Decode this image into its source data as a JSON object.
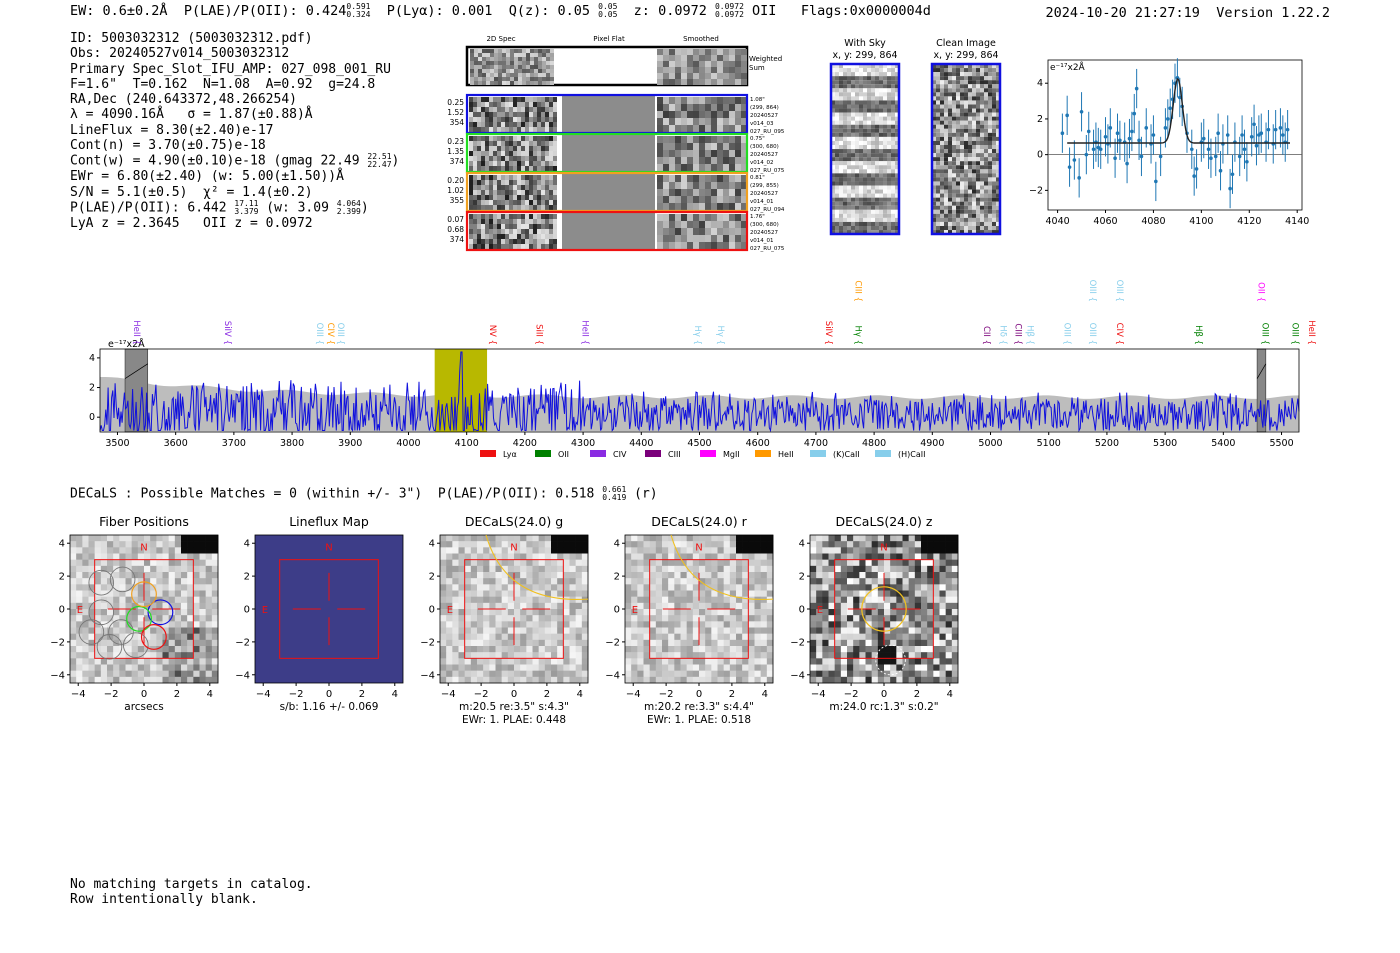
{
  "header": {
    "ew": "EW: 0.6±0.2Å",
    "plae_label": "P(LAE)/P(OII):",
    "plae_value": "0.424",
    "plae_hi": "0.591",
    "plae_lo": "0.324",
    "plya": "P(Lyα): 0.001",
    "q_label": "Q(z):",
    "q_value": "0.05",
    "q_hi": "0.05",
    "q_lo": "0.05",
    "z_label": "z:",
    "z_value": "0.0972",
    "z_hi": "0.0972",
    "z_lo": "0.0972",
    "z_line": "OII",
    "flags": "Flags:0x0000004d",
    "timestamp": "2024-10-20 21:27:19",
    "version": "Version 1.22.2"
  },
  "info": {
    "id": "ID: 5003032312 (5003032312.pdf)",
    "obs": "Obs: 20240527v014_5003032312",
    "primary": "Primary Spec_Slot_IFU_AMP: 027_098_001_RU",
    "params": "F=1.6\"  T=0.162  N=1.08  A=0.92  g=24.8",
    "radec": "RA,Dec (240.643372,48.266254)",
    "lambda": "λ = 4090.16Å   σ = 1.87(±0.88)Å",
    "lineflux": "LineFlux = 8.30(±2.40)e-17",
    "contn": "Cont(n) = 3.70(±0.75)e-18",
    "contw": "Cont(w) = 4.90(±0.10)e-18 (gmag 22.49",
    "contw_hi": "22.51",
    "contw_lo": "22.47",
    "contw_end": ")",
    "ewr": "EWr = 6.80(±2.40) (w: 5.00(±1.50))Å",
    "sn": "S/N = 5.1(±0.5)  χ² = 1.4(±0.2)",
    "plae": "P(LAE)/P(OII): 6.442",
    "plae_hi": "17.11",
    "plae_lo": "3.379",
    "plae_w": "(w: 3.09",
    "plae_w_hi": "4.064",
    "plae_w_lo": "2.399",
    "plae_end": ")",
    "zline": "LyA z = 2.3645   OII z = 0.0972"
  },
  "cutouts": {
    "col_labels": [
      "2D Spec",
      "Pixel Flat",
      "Smoothed"
    ],
    "weighted_sum": [
      "Weighted",
      "Sum"
    ],
    "rows": [
      {
        "color": "#1010e0",
        "left": [
          "0.25",
          "1.52",
          "354"
        ],
        "right": [
          "1.08\"",
          "(299, 864)",
          "20240527",
          "v014_03",
          "027_RU_095"
        ]
      },
      {
        "color": "#22dd22",
        "left": [
          "0.23",
          "1.35",
          "374"
        ],
        "right": [
          "0.75\"",
          "(300, 680)",
          "20240527",
          "v014_02",
          "027_RU_075"
        ]
      },
      {
        "color": "#f0a020",
        "left": [
          "0.20",
          "1.02",
          "355"
        ],
        "right": [
          "0.81\"",
          "(299, 855)",
          "20240527",
          "v014_01",
          "027_RU_094"
        ]
      },
      {
        "color": "#ee1111",
        "left": [
          "0.07",
          "0.68",
          "374"
        ],
        "right": [
          "1.76\"",
          "(300, 680)",
          "20240527",
          "v014_01",
          "027_RU_075"
        ]
      }
    ]
  },
  "sky_panels": [
    {
      "title": "With Sky",
      "coords": "x, y: 299, 864"
    },
    {
      "title": "Clean Image",
      "coords": "x, y: 299, 864"
    }
  ],
  "chart_data": [
    {
      "type": "scatter",
      "name": "line-zoom",
      "unit_label": "e⁻¹⁷x2Å",
      "xlim": [
        4036,
        4142
      ],
      "ylim": [
        -3.1,
        5.3
      ],
      "xticks": [
        4040,
        4060,
        4080,
        4100,
        4120,
        4140
      ],
      "yticks": [
        -2,
        0,
        2,
        4
      ],
      "points": [
        [
          4042,
          1.2
        ],
        [
          4044,
          2.2
        ],
        [
          4045,
          -0.7
        ],
        [
          4047,
          -0.3
        ],
        [
          4049,
          -1.3
        ],
        [
          4050,
          2.4
        ],
        [
          4052,
          0.0
        ],
        [
          4053,
          1.3
        ],
        [
          4055,
          0.3
        ],
        [
          4056,
          0.7
        ],
        [
          4057,
          0.4
        ],
        [
          4058,
          0.3
        ],
        [
          4060,
          1.0
        ],
        [
          4061,
          0.6
        ],
        [
          4062,
          1.5
        ],
        [
          4064,
          -0.2
        ],
        [
          4065,
          1.2
        ],
        [
          4066,
          0.8
        ],
        [
          4068,
          0.7
        ],
        [
          4069,
          -0.5
        ],
        [
          4070,
          0.9
        ],
        [
          4071,
          1.3
        ],
        [
          4072,
          2.3
        ],
        [
          4073,
          3.7
        ],
        [
          4074,
          0.8
        ],
        [
          4075,
          -0.1
        ],
        [
          4077,
          1.5
        ],
        [
          4079,
          0.6
        ],
        [
          4080,
          1.1
        ],
        [
          4081,
          -1.5
        ],
        [
          4083,
          -0.1
        ],
        [
          4085,
          1.5
        ],
        [
          4086,
          2.0
        ],
        [
          4087,
          2.6
        ],
        [
          4088,
          3.1
        ],
        [
          4089,
          4.0
        ],
        [
          4090,
          4.3
        ],
        [
          4091,
          3.2
        ],
        [
          4092,
          2.7
        ],
        [
          4094,
          1.2
        ],
        [
          4096,
          0.3
        ],
        [
          4097,
          -1.2
        ],
        [
          4098,
          -0.8
        ],
        [
          4100,
          0.7
        ],
        [
          4101,
          0.9
        ],
        [
          4103,
          0.3
        ],
        [
          4104,
          -0.2
        ],
        [
          4106,
          -0.1
        ],
        [
          4107,
          1.2
        ],
        [
          4108,
          -0.9
        ],
        [
          4109,
          0.6
        ],
        [
          4111,
          1.1
        ],
        [
          4112,
          -1.9
        ],
        [
          4113,
          -1.1
        ],
        [
          4114,
          0.7
        ],
        [
          4116,
          -0.1
        ],
        [
          4117,
          1.1
        ],
        [
          4118,
          0.3
        ],
        [
          4119,
          -0.4
        ],
        [
          4121,
          1.0
        ],
        [
          4122,
          1.7
        ],
        [
          4123,
          0.5
        ],
        [
          4124,
          1.1
        ],
        [
          4125,
          1.2
        ],
        [
          4127,
          0.7
        ],
        [
          4128,
          1.4
        ],
        [
          4130,
          0.6
        ],
        [
          4131,
          1.4
        ],
        [
          4133,
          1.5
        ],
        [
          4134,
          1.1
        ],
        [
          4135,
          0.7
        ],
        [
          4136,
          1.4
        ]
      ],
      "fit": {
        "continuum": 0.65,
        "amplitude": 3.6,
        "center": 4090.16,
        "sigma": 1.87,
        "range": [
          4044,
          4137
        ]
      }
    },
    {
      "type": "line",
      "name": "full-spectrum",
      "unit_label": "e⁻¹⁷x2Å",
      "xlim": [
        3470,
        5530
      ],
      "ylim": [
        -1.0,
        4.6
      ],
      "xticks": [
        3500,
        3600,
        3700,
        3800,
        3900,
        4000,
        4100,
        4200,
        4300,
        4400,
        4500,
        4600,
        4700,
        4800,
        4900,
        5000,
        5100,
        5200,
        5300,
        5400,
        5500
      ],
      "yticks": [
        0,
        2,
        4
      ],
      "highlight_range": [
        4045,
        4135
      ],
      "masked_ranges": [
        [
          3513,
          3552
        ],
        [
          5458,
          5473
        ]
      ],
      "legend": [
        {
          "label": "Lyα",
          "color": "#ee1111"
        },
        {
          "label": "OII",
          "color": "#008000"
        },
        {
          "label": "CIV",
          "color": "#8a2be2"
        },
        {
          "label": "CIII",
          "color": "#7a007a"
        },
        {
          "label": "MgII",
          "color": "#ff00ff"
        },
        {
          "label": "HeII",
          "color": "#ff9900"
        },
        {
          "label": "(K)CaII",
          "color": "#87ceeb"
        },
        {
          "label": "(H)CaII",
          "color": "#87ceeb"
        }
      ],
      "line_labels": [
        {
          "text": "HeII",
          "wave": 3523,
          "row": 0,
          "color": "#8a2be2"
        },
        {
          "text": "SiIV",
          "wave": 3680,
          "row": 0,
          "color": "#8a2be2"
        },
        {
          "text": "OIII",
          "wave": 3838,
          "row": 0,
          "color": "#87ceeb"
        },
        {
          "text": "CIV",
          "wave": 3857,
          "row": 0,
          "color": "#ff9900"
        },
        {
          "text": "OIII",
          "wave": 3874,
          "row": 0,
          "color": "#87ceeb"
        },
        {
          "text": "NV",
          "wave": 4135,
          "row": 0,
          "color": "#ee1111"
        },
        {
          "text": "SiII",
          "wave": 4215,
          "row": 0,
          "color": "#ee1111"
        },
        {
          "text": "HeII",
          "wave": 4294,
          "row": 0,
          "color": "#8a2be2"
        },
        {
          "text": "Hγ",
          "wave": 4487,
          "row": 0,
          "color": "#87ceeb"
        },
        {
          "text": "Hγ",
          "wave": 4527,
          "row": 0,
          "color": "#87ceeb"
        },
        {
          "text": "SiIV",
          "wave": 4712,
          "row": 0,
          "color": "#ee1111"
        },
        {
          "text": "CIII",
          "wave": 4763,
          "row": 1,
          "color": "#ff9900"
        },
        {
          "text": "Hγ",
          "wave": 4763,
          "row": 0,
          "color": "#008000"
        },
        {
          "text": "CII",
          "wave": 4984,
          "row": 0,
          "color": "#7a007a"
        },
        {
          "text": "Hδ",
          "wave": 5012,
          "row": 0,
          "color": "#87ceeb"
        },
        {
          "text": "CIII",
          "wave": 5038,
          "row": 0,
          "color": "#7a007a"
        },
        {
          "text": "Hβ",
          "wave": 5058,
          "row": 0,
          "color": "#87ceeb"
        },
        {
          "text": "OIII",
          "wave": 5122,
          "row": 0,
          "color": "#87ceeb"
        },
        {
          "text": "OIII",
          "wave": 5166,
          "row": 1,
          "color": "#87ceeb"
        },
        {
          "text": "OIII",
          "wave": 5166,
          "row": 0,
          "color": "#87ceeb"
        },
        {
          "text": "OIII",
          "wave": 5212,
          "row": 1,
          "color": "#87ceeb"
        },
        {
          "text": "CIV",
          "wave": 5212,
          "row": 0,
          "color": "#ee1111"
        },
        {
          "text": "Hβ",
          "wave": 5348,
          "row": 0,
          "color": "#008000"
        },
        {
          "text": "OII",
          "wave": 5455,
          "row": 1,
          "color": "#ff00ff"
        },
        {
          "text": "OIII",
          "wave": 5462,
          "row": 0,
          "color": "#008000"
        },
        {
          "text": "OIII",
          "wave": 5514,
          "row": 0,
          "color": "#008000"
        },
        {
          "text": "HeII",
          "wave": 5542,
          "row": 0,
          "color": "#ee1111"
        }
      ]
    }
  ],
  "decals": {
    "headline_prefix": "DECaLS : Possible Matches = 0 (within +/- 3\")  P(LAE)/P(OII): 0.518",
    "headline_hi": "0.661",
    "headline_lo": "0.419",
    "headline_suffix": "(r)",
    "axis_ticks": [
      "−4",
      "−2",
      "0",
      "2",
      "4"
    ],
    "compass_n": "N",
    "compass_e": "E",
    "panels": [
      {
        "title": "Fiber Positions",
        "captions": [
          "arcsecs"
        ]
      },
      {
        "title": "Lineflux Map",
        "captions": [
          "s/b: 1.16 +/- 0.069"
        ]
      },
      {
        "title": "DECaLS(24.0) g",
        "captions": [
          "m:20.5  re:3.5\"  s:4.3\"",
          "EWr: 1. PLAE: 0.448"
        ]
      },
      {
        "title": "DECaLS(24.0) r",
        "captions": [
          "m:20.2  re:3.3\"  s:4.4\"",
          "EWr: 1. PLAE: 0.518"
        ]
      },
      {
        "title": "DECaLS(24.0) z",
        "captions": [
          "m:24.0 rc:1.3\"  s:0.2\""
        ]
      }
    ]
  },
  "footer": {
    "line1": "No matching targets in catalog.",
    "line2": "Row intentionally blank."
  }
}
